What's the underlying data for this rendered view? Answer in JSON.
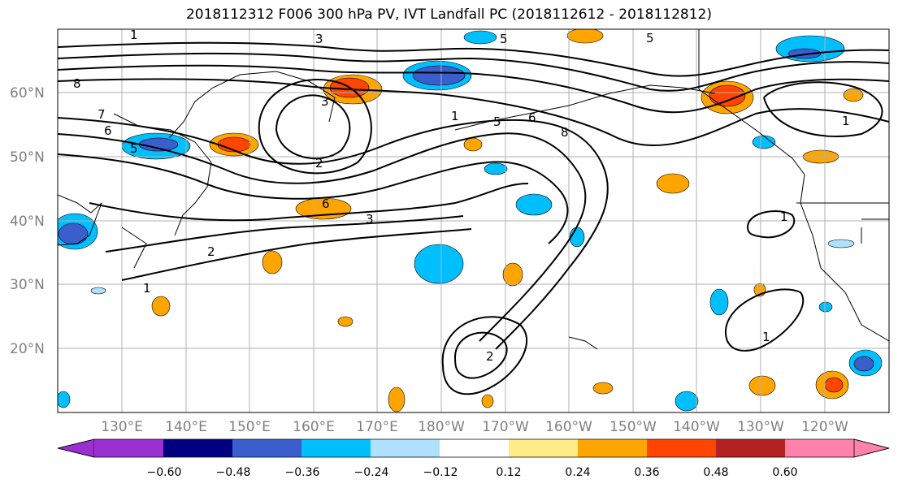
{
  "title": "2018112312 F006 300 hPa PV, IVT Landfall PC (2018112612 - 2018112812)",
  "lat_labels": [
    "60°N",
    "50°N",
    "40°N",
    "30°N",
    "20°N"
  ],
  "lon_labels": [
    "130°E",
    "140°E",
    "150°E",
    "160°E",
    "170°E",
    "180°W",
    "170°W",
    "160°W",
    "150°W",
    "140°W",
    "130°W",
    "120°W"
  ],
  "colorbar": {
    "ticks": [
      "−0.60",
      "−0.48",
      "−0.36",
      "−0.24",
      "−0.12",
      "0.12",
      "0.24",
      "0.36",
      "0.48",
      "0.60"
    ],
    "colors": [
      "#9b30d0",
      "#000080",
      "#3a5fcd",
      "#00bfff",
      "#b0e2ff",
      "#ffffff",
      "#ffeb8a",
      "#ffa500",
      "#ff4500",
      "#b22222",
      "#ff82ab"
    ]
  },
  "contour_labels": [
    "1",
    "3",
    "5",
    "5",
    "8",
    "7",
    "6",
    "5",
    "1",
    "3",
    "2",
    "2",
    "6",
    "3",
    "1",
    "5",
    "6",
    "8",
    "1",
    "2",
    "1",
    "1"
  ],
  "colors": {
    "gridline": "#b0b0b0",
    "axis_text": "#7f7f7f"
  }
}
